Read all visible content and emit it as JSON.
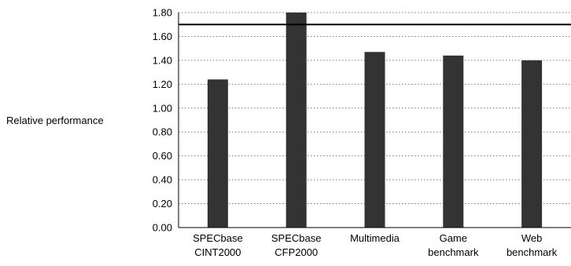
{
  "chart_data": {
    "type": "bar",
    "title": "",
    "xlabel": "",
    "ylabel": "Relative performance",
    "ylim": [
      0,
      1.8
    ],
    "y_ticks": [
      "0.00",
      "0.20",
      "0.40",
      "0.60",
      "0.80",
      "1.00",
      "1.20",
      "1.40",
      "1.60",
      "1.80"
    ],
    "categories": [
      [
        "SPECbase",
        "CINT2000"
      ],
      [
        "SPECbase",
        "CFP2000"
      ],
      [
        "Multimedia"
      ],
      [
        "Game",
        "benchmark"
      ],
      [
        "Web",
        "benchmark"
      ]
    ],
    "values": [
      1.24,
      1.8,
      1.47,
      1.44,
      1.4
    ],
    "reference_line": 1.7,
    "grid": "horizontal dotted",
    "legend": "none",
    "colors": {
      "bar": "#333333",
      "grid": "#777777",
      "axis": "#000000",
      "reference": "#000000"
    }
  }
}
